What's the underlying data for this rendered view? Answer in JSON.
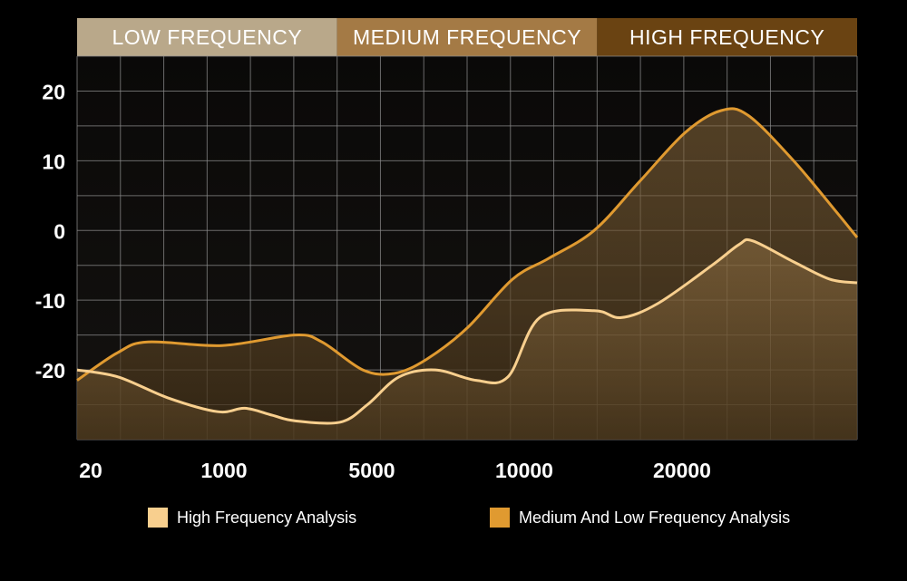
{
  "chart_data": {
    "type": "area",
    "bands": [
      {
        "label": "LOW FREQUENCY",
        "color": "#b9a88a"
      },
      {
        "label": "MEDIUM FREQUENCY",
        "color": "#a47a45"
      },
      {
        "label": "HIGH FREQUENCY",
        "color": "#6a4312"
      }
    ],
    "y_ticks": [
      "20",
      "10",
      "0",
      "-10",
      "-20"
    ],
    "x_ticks": [
      "20",
      "1000",
      "5000",
      "10000",
      "20000"
    ],
    "ylim": [
      -30,
      25
    ],
    "series": [
      {
        "name": "Medium And Low Frequency Analysis",
        "color": "#e09a30",
        "points": [
          [
            0,
            -21.5
          ],
          [
            45,
            -17.5
          ],
          [
            78,
            -16
          ],
          [
            160,
            -16.5
          ],
          [
            240,
            -15
          ],
          [
            270,
            -16
          ],
          [
            315,
            -20
          ],
          [
            350,
            -20.5
          ],
          [
            385,
            -18.5
          ],
          [
            430,
            -14
          ],
          [
            480,
            -7
          ],
          [
            520,
            -4
          ],
          [
            570,
            0
          ],
          [
            620,
            7
          ],
          [
            670,
            14
          ],
          [
            710,
            17.2
          ],
          [
            740,
            16.5
          ],
          [
            790,
            10
          ],
          [
            835,
            3
          ],
          [
            860,
            -1
          ]
        ]
      },
      {
        "name": "High Frequency Analysis",
        "color": "#f8cf8e",
        "points": [
          [
            0,
            -20
          ],
          [
            45,
            -21
          ],
          [
            100,
            -24
          ],
          [
            155,
            -26
          ],
          [
            185,
            -25.5
          ],
          [
            215,
            -26.5
          ],
          [
            240,
            -27.3
          ],
          [
            290,
            -27.5
          ],
          [
            320,
            -25
          ],
          [
            355,
            -21
          ],
          [
            395,
            -20
          ],
          [
            440,
            -21.5
          ],
          [
            475,
            -21
          ],
          [
            510,
            -12.5
          ],
          [
            570,
            -11.5
          ],
          [
            600,
            -12.5
          ],
          [
            640,
            -10.5
          ],
          [
            700,
            -5
          ],
          [
            730,
            -2
          ],
          [
            745,
            -1.5
          ],
          [
            790,
            -4.5
          ],
          [
            830,
            -7
          ],
          [
            860,
            -7.5
          ]
        ]
      }
    ]
  },
  "legend": [
    {
      "label": "High Frequency Analysis",
      "color": "#f8cf8e"
    },
    {
      "label": "Medium And Low Frequency Analysis",
      "color": "#e09a30"
    }
  ]
}
